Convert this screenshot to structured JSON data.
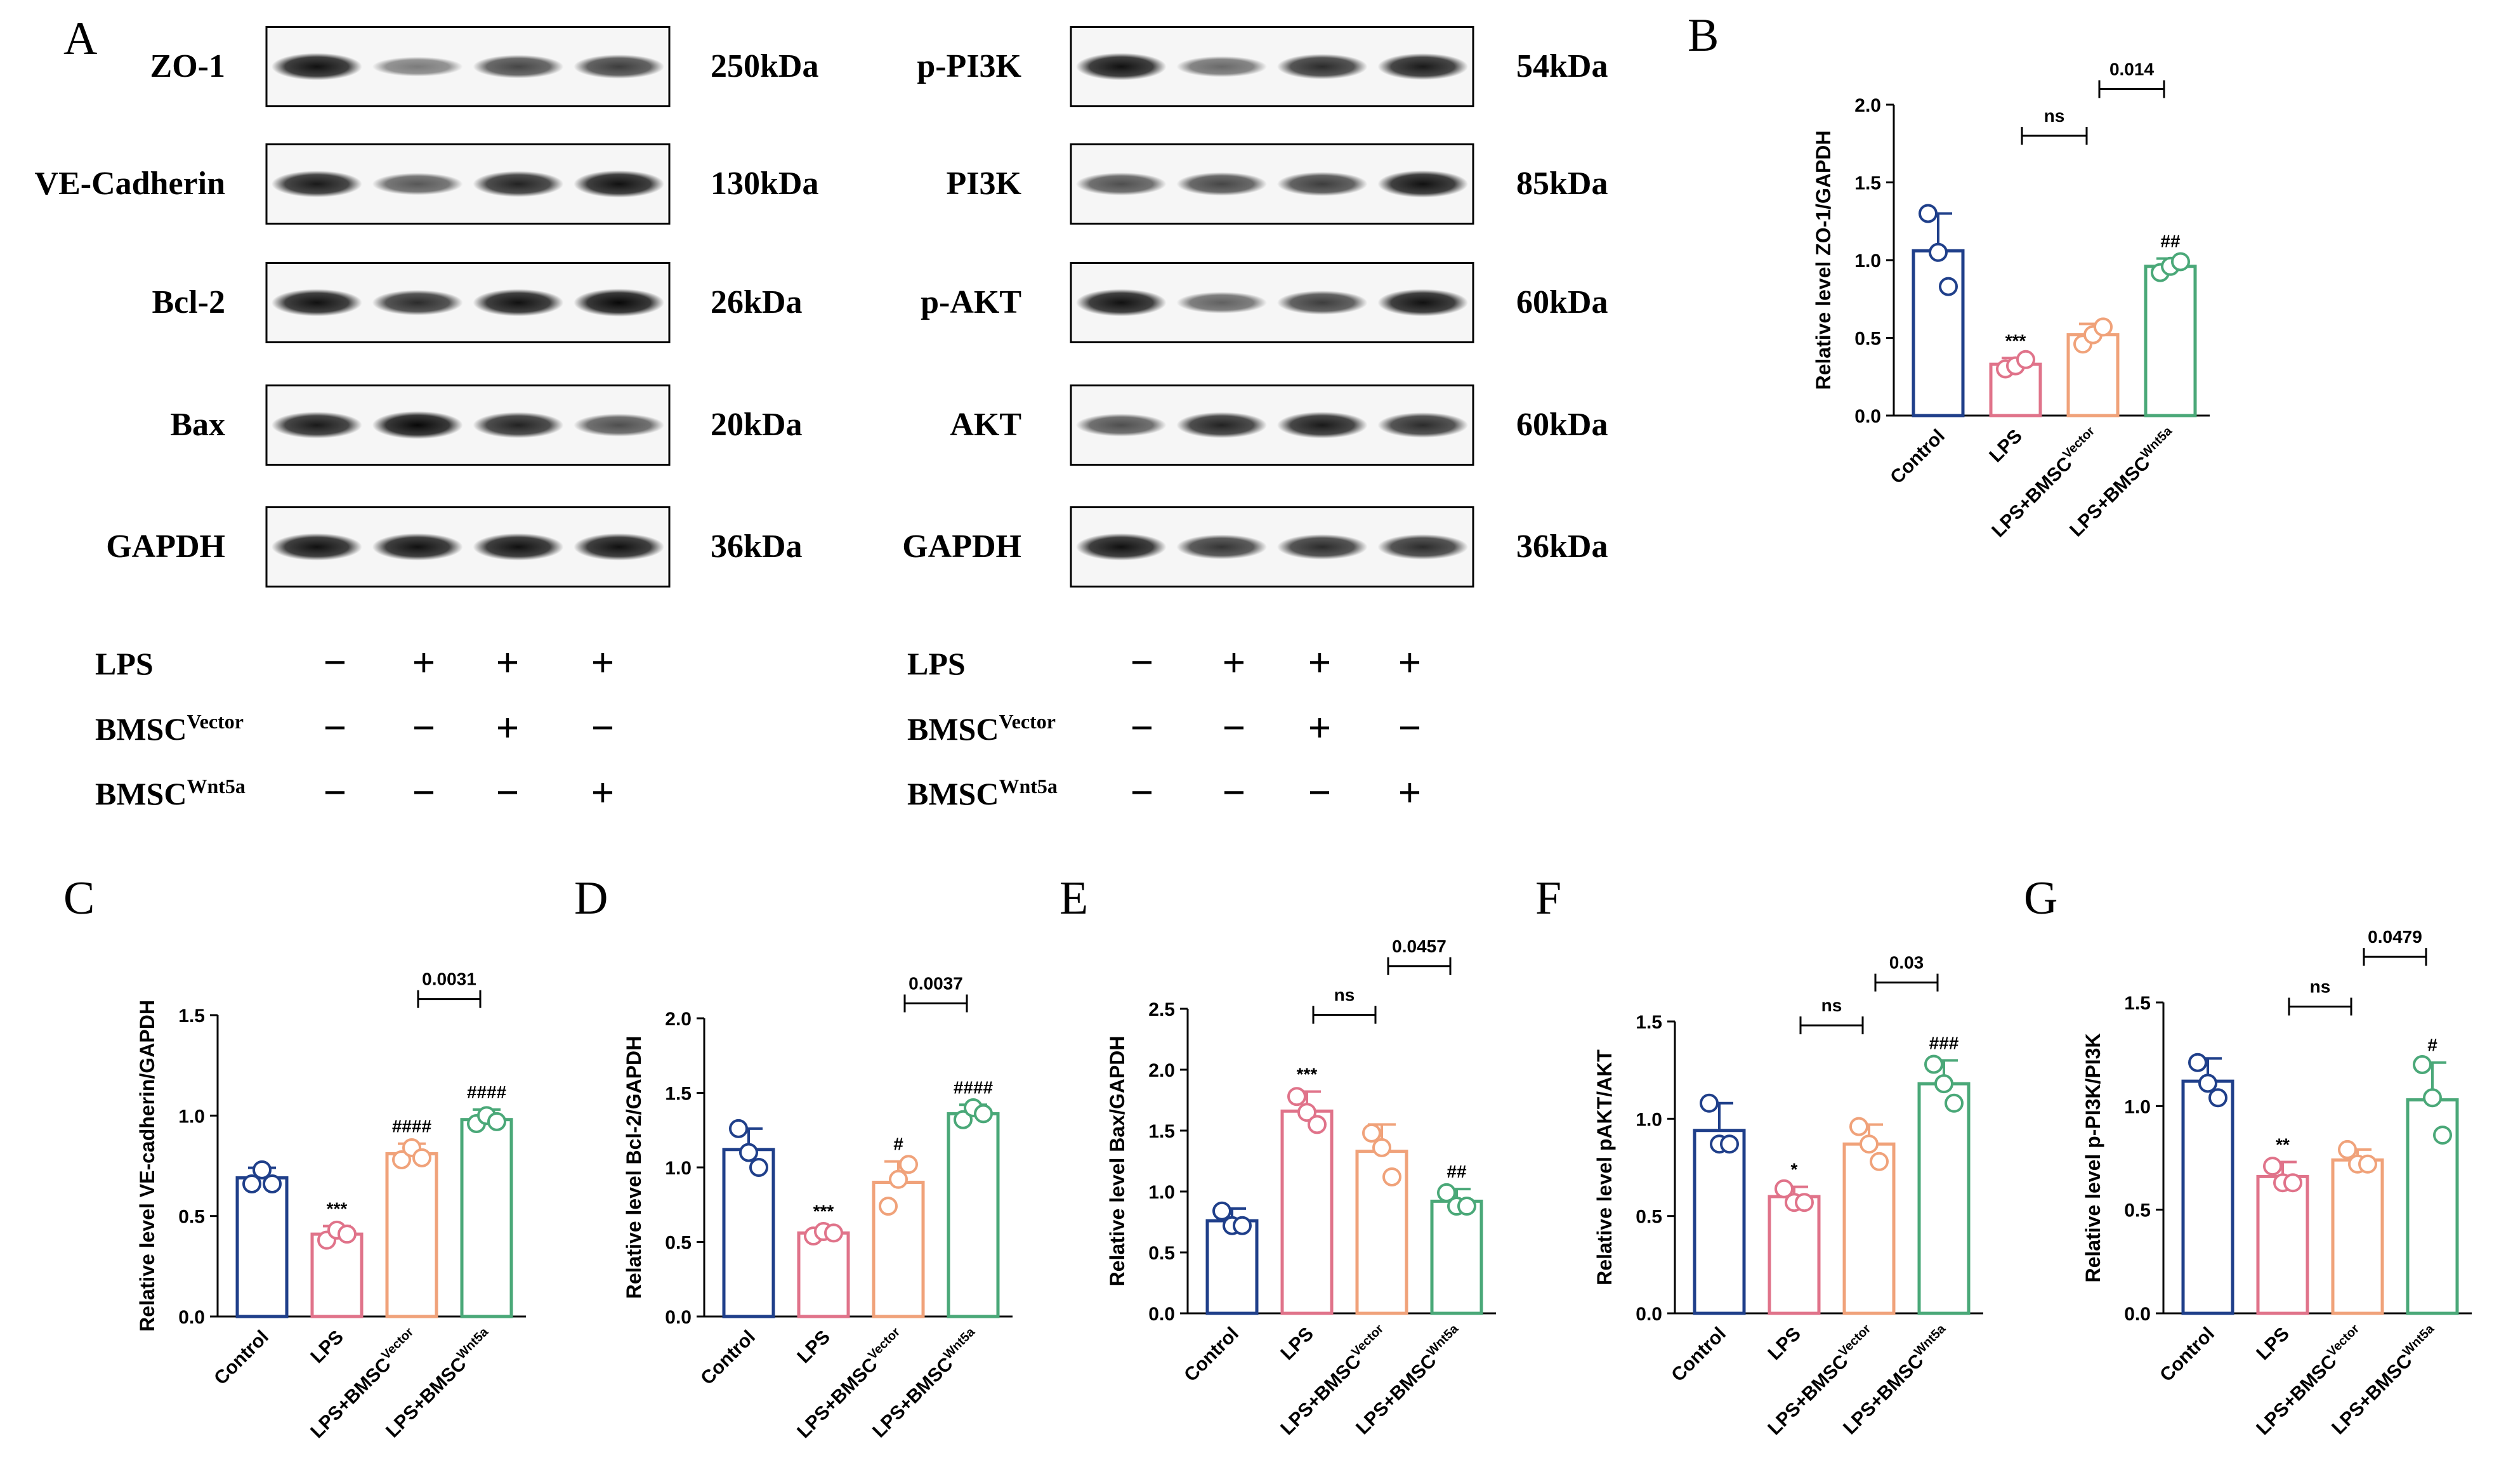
{
  "panel_letters": {
    "a": "A",
    "b": "B",
    "c": "C",
    "d": "D",
    "e": "E",
    "f": "F",
    "g": "G"
  },
  "blots": {
    "left": [
      {
        "label": "ZO-1",
        "kda": "250kDa",
        "bands": [
          0.95,
          0.35,
          0.65,
          0.7
        ]
      },
      {
        "label": "VE-Cadherin",
        "kda": "130kDa",
        "bands": [
          0.9,
          0.55,
          0.85,
          0.95
        ]
      },
      {
        "label": "Bcl-2",
        "kda": "26kDa",
        "bands": [
          0.95,
          0.8,
          0.95,
          1.0
        ]
      },
      {
        "label": "Bax",
        "kda": "20kDa",
        "bands": [
          0.9,
          1.0,
          0.85,
          0.6
        ]
      },
      {
        "label": "GAPDH",
        "kda": "36kDa",
        "bands": [
          0.95,
          0.95,
          0.95,
          0.95
        ]
      }
    ],
    "right": [
      {
        "label": "p-PI3K",
        "kda": "54kDa",
        "bands": [
          0.95,
          0.45,
          0.8,
          0.9
        ]
      },
      {
        "label": "PI3K",
        "kda": "85kDa",
        "bands": [
          0.6,
          0.65,
          0.7,
          0.95
        ]
      },
      {
        "label": "p-AKT",
        "kda": "60kDa",
        "bands": [
          0.95,
          0.5,
          0.7,
          0.95
        ]
      },
      {
        "label": "AKT",
        "kda": "60kDa",
        "bands": [
          0.6,
          0.85,
          0.9,
          0.8
        ]
      },
      {
        "label": "GAPDH",
        "kda": "36kDa",
        "bands": [
          0.95,
          0.75,
          0.8,
          0.8
        ]
      }
    ]
  },
  "treatment_rows": [
    {
      "label": "LPS",
      "sup": "",
      "signs": [
        "−",
        "+",
        "+",
        "+"
      ]
    },
    {
      "label": "BMSC",
      "sup": "Vector",
      "signs": [
        "−",
        "−",
        "+",
        "−"
      ]
    },
    {
      "label": "BMSC",
      "sup": "Wnt5a",
      "signs": [
        "−",
        "−",
        "−",
        "+"
      ]
    }
  ],
  "group_colors": [
    "#1f3f8a",
    "#e0738a",
    "#f0a27a",
    "#4aa878"
  ],
  "group_labels": [
    {
      "main": "Control",
      "sup": ""
    },
    {
      "main": "LPS",
      "sup": ""
    },
    {
      "main": "LPS+BMSC",
      "sup": "Vector"
    },
    {
      "main": "LPS+BMSC",
      "sup": "Wnt5a"
    }
  ],
  "chart_data": [
    {
      "panel": "B",
      "type": "bar",
      "categories": [
        "Control",
        "LPS",
        "LPS+BMSC Vector",
        "LPS+BMSC Wnt5a"
      ],
      "ylabel": "Relative level ZO-1/GAPDH",
      "ylim": [
        0,
        2.0
      ],
      "yticks": [
        "0.0",
        "0.5",
        "1.0",
        "1.5",
        "2.0"
      ],
      "values": [
        1.06,
        0.33,
        0.52,
        0.96
      ],
      "sd": [
        0.24,
        0.04,
        0.07,
        0.05
      ],
      "points": [
        [
          1.3,
          1.05,
          0.83
        ],
        [
          0.3,
          0.32,
          0.36
        ],
        [
          0.46,
          0.52,
          0.57
        ],
        [
          0.92,
          0.96,
          0.99
        ]
      ],
      "stars": [
        "",
        "***",
        "",
        "##"
      ],
      "brackets": [
        {
          "from": 1,
          "to": 2,
          "label": "ns",
          "y": 1.8
        },
        {
          "from": 2,
          "to": 3,
          "label": "0.014",
          "y": 2.1
        }
      ]
    },
    {
      "panel": "C",
      "type": "bar",
      "categories": [
        "Control",
        "LPS",
        "LPS+BMSC Vector",
        "LPS+BMSC Wnt5a"
      ],
      "ylabel": "Relative level VE-cadherin/GAPDH",
      "ylim": [
        0,
        1.5
      ],
      "yticks": [
        "0.0",
        "0.5",
        "1.0",
        "1.5"
      ],
      "values": [
        0.69,
        0.41,
        0.81,
        0.98
      ],
      "sd": [
        0.05,
        0.04,
        0.05,
        0.05
      ],
      "points": [
        [
          0.66,
          0.73,
          0.66
        ],
        [
          0.38,
          0.43,
          0.41
        ],
        [
          0.78,
          0.84,
          0.79
        ],
        [
          0.96,
          1.0,
          0.97
        ]
      ],
      "stars": [
        "",
        "***",
        "####",
        "####"
      ],
      "brackets": [
        {
          "from": 2,
          "to": 3,
          "label": "0.0031",
          "y": 1.58
        }
      ]
    },
    {
      "panel": "D",
      "type": "bar",
      "categories": [
        "Control",
        "LPS",
        "LPS+BMSC Vector",
        "LPS+BMSC Wnt5a"
      ],
      "ylabel": "Relative level Bcl-2/GAPDH",
      "ylim": [
        0,
        2.0
      ],
      "yticks": [
        "0.0",
        "0.5",
        "1.0",
        "1.5",
        "2.0"
      ],
      "values": [
        1.12,
        0.56,
        0.9,
        1.36
      ],
      "sd": [
        0.14,
        0.03,
        0.14,
        0.06
      ],
      "points": [
        [
          1.26,
          1.1,
          1.0
        ],
        [
          0.54,
          0.57,
          0.56
        ],
        [
          0.74,
          0.92,
          1.02
        ],
        [
          1.32,
          1.4,
          1.36
        ]
      ],
      "stars": [
        "",
        "***",
        "#",
        "####"
      ],
      "brackets": [
        {
          "from": 2,
          "to": 3,
          "label": "0.0037",
          "y": 2.1
        }
      ]
    },
    {
      "panel": "E",
      "type": "bar",
      "categories": [
        "Control",
        "LPS",
        "LPS+BMSC Vector",
        "LPS+BMSC Wnt5a"
      ],
      "ylabel": "Relative level Bax/GAPDH",
      "ylim": [
        0,
        2.5
      ],
      "yticks": [
        "0.0",
        "0.5",
        "1.0",
        "1.5",
        "2.0",
        "2.5"
      ],
      "values": [
        0.76,
        1.66,
        1.33,
        0.92
      ],
      "sd": [
        0.1,
        0.16,
        0.22,
        0.1
      ],
      "points": [
        [
          0.84,
          0.72,
          0.72
        ],
        [
          1.78,
          1.65,
          1.55
        ],
        [
          1.48,
          1.36,
          1.12
        ],
        [
          0.99,
          0.88,
          0.88
        ]
      ],
      "stars": [
        "",
        "***",
        "",
        "##"
      ],
      "brackets": [
        {
          "from": 1,
          "to": 2,
          "label": "ns",
          "y": 2.45
        },
        {
          "from": 2,
          "to": 3,
          "label": "0.0457",
          "y": 2.85
        }
      ]
    },
    {
      "panel": "F",
      "type": "bar",
      "categories": [
        "Control",
        "LPS",
        "LPS+BMSC Vector",
        "LPS+BMSC Wnt5a"
      ],
      "ylabel": "Relative level pAKT/AKT",
      "ylim": [
        0,
        1.5
      ],
      "yticks": [
        "0.0",
        "0.5",
        "1.0",
        "1.5"
      ],
      "values": [
        0.94,
        0.6,
        0.87,
        1.18
      ],
      "sd": [
        0.14,
        0.05,
        0.1,
        0.12
      ],
      "points": [
        [
          1.08,
          0.87,
          0.87
        ],
        [
          0.64,
          0.57,
          0.57
        ],
        [
          0.96,
          0.87,
          0.78
        ],
        [
          1.28,
          1.18,
          1.08
        ]
      ],
      "stars": [
        "",
        "*",
        "",
        "###"
      ],
      "brackets": [
        {
          "from": 1,
          "to": 2,
          "label": "ns",
          "y": 1.48
        },
        {
          "from": 2,
          "to": 3,
          "label": "0.03",
          "y": 1.7
        }
      ]
    },
    {
      "panel": "G",
      "type": "bar",
      "categories": [
        "Control",
        "LPS",
        "LPS+BMSC Vector",
        "LPS+BMSC Wnt5a"
      ],
      "ylabel": "Relative level p-PI3K/PI3K",
      "ylim": [
        0,
        1.5
      ],
      "yticks": [
        "0.0",
        "0.5",
        "1.0",
        "1.5"
      ],
      "values": [
        1.12,
        0.66,
        0.74,
        1.03
      ],
      "sd": [
        0.11,
        0.07,
        0.05,
        0.18
      ],
      "points": [
        [
          1.21,
          1.11,
          1.04
        ],
        [
          0.71,
          0.63,
          0.63
        ],
        [
          0.79,
          0.72,
          0.72
        ],
        [
          1.2,
          1.04,
          0.86
        ]
      ],
      "stars": [
        "",
        "**",
        "",
        "#"
      ],
      "brackets": [
        {
          "from": 1,
          "to": 2,
          "label": "ns",
          "y": 1.48
        },
        {
          "from": 2,
          "to": 3,
          "label": "0.0479",
          "y": 1.72
        }
      ]
    }
  ]
}
